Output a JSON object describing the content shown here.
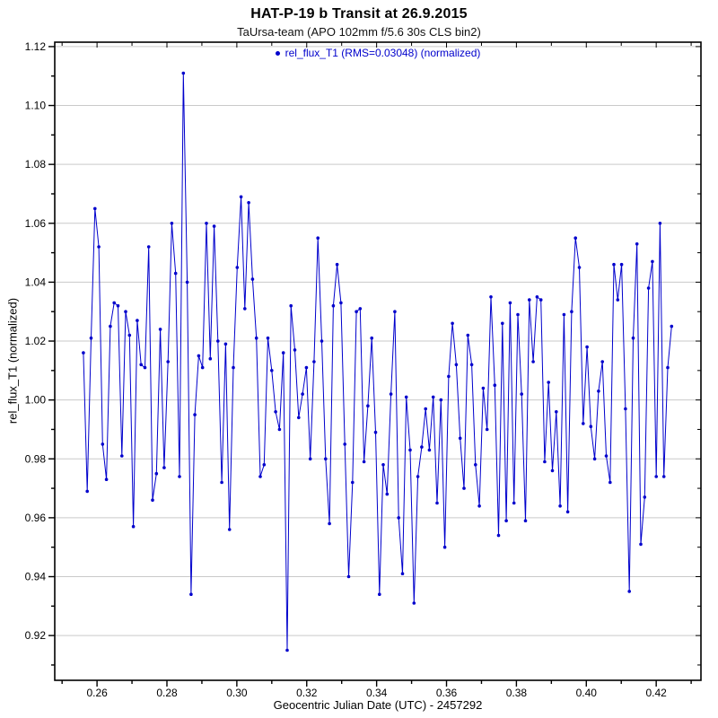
{
  "header": {
    "title": "HAT-P-19 b Transit at 26.9.2015",
    "subtitle": "TaUrsa-team (APO 102mm f/5.6 30s CLS bin2)"
  },
  "legend": {
    "label": "rel_flux_T1 (RMS=0.03048) (normalized)"
  },
  "colors": {
    "series_blue": "#0000CC",
    "gridline_gray": "#C9C9C9",
    "axis_black": "#000000",
    "background": "#FFFFFF"
  },
  "chart_data": {
    "type": "line",
    "title": "HAT-P-19 b Transit at 26.9.2015",
    "subtitle": "TaUrsa-team (APO 102mm f/5.6 30s CLS bin2)",
    "xlabel": "Geocentric Julian Date (UTC) - 2457292",
    "ylabel": "rel_flux_T1 (normalized)",
    "legend_entry": "rel_flux_T1 (RMS=0.03048) (normalized)",
    "legend_position": "top-center-inside",
    "grid": "horizontal-only",
    "marker": "filled-circle",
    "xlim": [
      0.2479,
      0.4328
    ],
    "ylim": [
      0.9048,
      1.1215
    ],
    "x_major_ticks": [
      0.26,
      0.28,
      0.3,
      0.32,
      0.34,
      0.36,
      0.38,
      0.4,
      0.42
    ],
    "x_tick_labels": [
      "0.26",
      "0.28",
      "0.30",
      "0.32",
      "0.34",
      "0.36",
      "0.38",
      "0.40",
      "0.42"
    ],
    "x_minor_step": 0.01,
    "y_major_ticks": [
      0.92,
      0.94,
      0.96,
      0.98,
      1.0,
      1.02,
      1.04,
      1.06,
      1.08,
      1.1,
      1.12
    ],
    "y_tick_labels": [
      "0.92",
      "0.94",
      "0.96",
      "0.98",
      "1.00",
      "1.02",
      "1.04",
      "1.06",
      "1.08",
      "1.10",
      "1.12"
    ],
    "y_minor_step": 0.01,
    "series": [
      {
        "name": "rel_flux_T1",
        "rms": 0.03048,
        "points": [
          [
            0.2561,
            1.016
          ],
          [
            0.2572,
            0.969
          ],
          [
            0.2583,
            1.021
          ],
          [
            0.2594,
            1.065
          ],
          [
            0.2605,
            1.052
          ],
          [
            0.2616,
            0.985
          ],
          [
            0.2627,
            0.973
          ],
          [
            0.2638,
            1.025
          ],
          [
            0.2649,
            1.033
          ],
          [
            0.266,
            1.032
          ],
          [
            0.2671,
            0.981
          ],
          [
            0.2682,
            1.03
          ],
          [
            0.2693,
            1.022
          ],
          [
            0.2704,
            0.957
          ],
          [
            0.2715,
            1.027
          ],
          [
            0.2726,
            1.012
          ],
          [
            0.2737,
            1.011
          ],
          [
            0.2748,
            1.052
          ],
          [
            0.2759,
            0.966
          ],
          [
            0.277,
            0.975
          ],
          [
            0.2781,
            1.024
          ],
          [
            0.2792,
            0.977
          ],
          [
            0.2803,
            1.013
          ],
          [
            0.2814,
            1.06
          ],
          [
            0.2825,
            1.043
          ],
          [
            0.2836,
            0.974
          ],
          [
            0.2847,
            1.111
          ],
          [
            0.2858,
            1.04
          ],
          [
            0.2869,
            0.934
          ],
          [
            0.288,
            0.995
          ],
          [
            0.2891,
            1.015
          ],
          [
            0.2902,
            1.011
          ],
          [
            0.2913,
            1.06
          ],
          [
            0.2924,
            1.014
          ],
          [
            0.2935,
            1.059
          ],
          [
            0.2946,
            1.02
          ],
          [
            0.2957,
            0.972
          ],
          [
            0.2968,
            1.019
          ],
          [
            0.2979,
            0.956
          ],
          [
            0.299,
            1.011
          ],
          [
            0.3001,
            1.045
          ],
          [
            0.3012,
            1.069
          ],
          [
            0.3023,
            1.031
          ],
          [
            0.3034,
            1.067
          ],
          [
            0.3045,
            1.041
          ],
          [
            0.3056,
            1.021
          ],
          [
            0.3067,
            0.974
          ],
          [
            0.3078,
            0.978
          ],
          [
            0.3089,
            1.021
          ],
          [
            0.31,
            1.01
          ],
          [
            0.3111,
            0.996
          ],
          [
            0.3122,
            0.99
          ],
          [
            0.3133,
            1.016
          ],
          [
            0.3144,
            0.915
          ],
          [
            0.3155,
            1.032
          ],
          [
            0.3166,
            1.017
          ],
          [
            0.3177,
            0.994
          ],
          [
            0.3188,
            1.002
          ],
          [
            0.3199,
            1.011
          ],
          [
            0.321,
            0.98
          ],
          [
            0.3221,
            1.013
          ],
          [
            0.3232,
            1.055
          ],
          [
            0.3243,
            1.02
          ],
          [
            0.3254,
            0.98
          ],
          [
            0.3265,
            0.958
          ],
          [
            0.3276,
            1.032
          ],
          [
            0.3287,
            1.046
          ],
          [
            0.3298,
            1.033
          ],
          [
            0.3309,
            0.985
          ],
          [
            0.332,
            0.94
          ],
          [
            0.3331,
            0.972
          ],
          [
            0.3342,
            1.03
          ],
          [
            0.3353,
            1.031
          ],
          [
            0.3364,
            0.979
          ],
          [
            0.3375,
            0.998
          ],
          [
            0.3386,
            1.021
          ],
          [
            0.3397,
            0.989
          ],
          [
            0.3408,
            0.934
          ],
          [
            0.3419,
            0.978
          ],
          [
            0.343,
            0.968
          ],
          [
            0.3441,
            1.002
          ],
          [
            0.3452,
            1.03
          ],
          [
            0.3463,
            0.96
          ],
          [
            0.3474,
            0.941
          ],
          [
            0.3485,
            1.001
          ],
          [
            0.3496,
            0.983
          ],
          [
            0.3507,
            0.931
          ],
          [
            0.3518,
            0.974
          ],
          [
            0.3529,
            0.984
          ],
          [
            0.354,
            0.997
          ],
          [
            0.3551,
            0.983
          ],
          [
            0.3562,
            1.001
          ],
          [
            0.3573,
            0.965
          ],
          [
            0.3584,
            1.0
          ],
          [
            0.3595,
            0.95
          ],
          [
            0.3606,
            1.008
          ],
          [
            0.3617,
            1.026
          ],
          [
            0.3628,
            1.012
          ],
          [
            0.3639,
            0.987
          ],
          [
            0.365,
            0.97
          ],
          [
            0.3661,
            1.022
          ],
          [
            0.3672,
            1.012
          ],
          [
            0.3683,
            0.978
          ],
          [
            0.3694,
            0.964
          ],
          [
            0.3705,
            1.004
          ],
          [
            0.3716,
            0.99
          ],
          [
            0.3727,
            1.035
          ],
          [
            0.3738,
            1.005
          ],
          [
            0.3749,
            0.954
          ],
          [
            0.376,
            1.026
          ],
          [
            0.3771,
            0.959
          ],
          [
            0.3782,
            1.033
          ],
          [
            0.3793,
            0.965
          ],
          [
            0.3804,
            1.029
          ],
          [
            0.3815,
            1.002
          ],
          [
            0.3826,
            0.959
          ],
          [
            0.3837,
            1.034
          ],
          [
            0.3848,
            1.013
          ],
          [
            0.3859,
            1.035
          ],
          [
            0.387,
            1.034
          ],
          [
            0.3881,
            0.979
          ],
          [
            0.3892,
            1.006
          ],
          [
            0.3903,
            0.976
          ],
          [
            0.3914,
            0.996
          ],
          [
            0.3925,
            0.964
          ],
          [
            0.3936,
            1.029
          ],
          [
            0.3947,
            0.962
          ],
          [
            0.3958,
            1.03
          ],
          [
            0.3969,
            1.055
          ],
          [
            0.398,
            1.045
          ],
          [
            0.3991,
            0.992
          ],
          [
            0.4002,
            1.018
          ],
          [
            0.4013,
            0.991
          ],
          [
            0.4024,
            0.98
          ],
          [
            0.4035,
            1.003
          ],
          [
            0.4046,
            1.013
          ],
          [
            0.4057,
            0.981
          ],
          [
            0.4068,
            0.972
          ],
          [
            0.4079,
            1.046
          ],
          [
            0.409,
            1.034
          ],
          [
            0.4101,
            1.046
          ],
          [
            0.4112,
            0.997
          ],
          [
            0.4123,
            0.935
          ],
          [
            0.4134,
            1.021
          ],
          [
            0.4145,
            1.053
          ],
          [
            0.4156,
            0.951
          ],
          [
            0.4167,
            0.967
          ],
          [
            0.4178,
            1.038
          ],
          [
            0.4189,
            1.047
          ],
          [
            0.42,
            0.974
          ],
          [
            0.4211,
            1.06
          ],
          [
            0.4222,
            0.974
          ],
          [
            0.4233,
            1.011
          ],
          [
            0.4244,
            1.025
          ]
        ]
      }
    ]
  },
  "axes_text": {
    "xlabel": "Geocentric Julian Date (UTC) - 2457292",
    "ylabel": "rel_flux_T1 (normalized)"
  }
}
